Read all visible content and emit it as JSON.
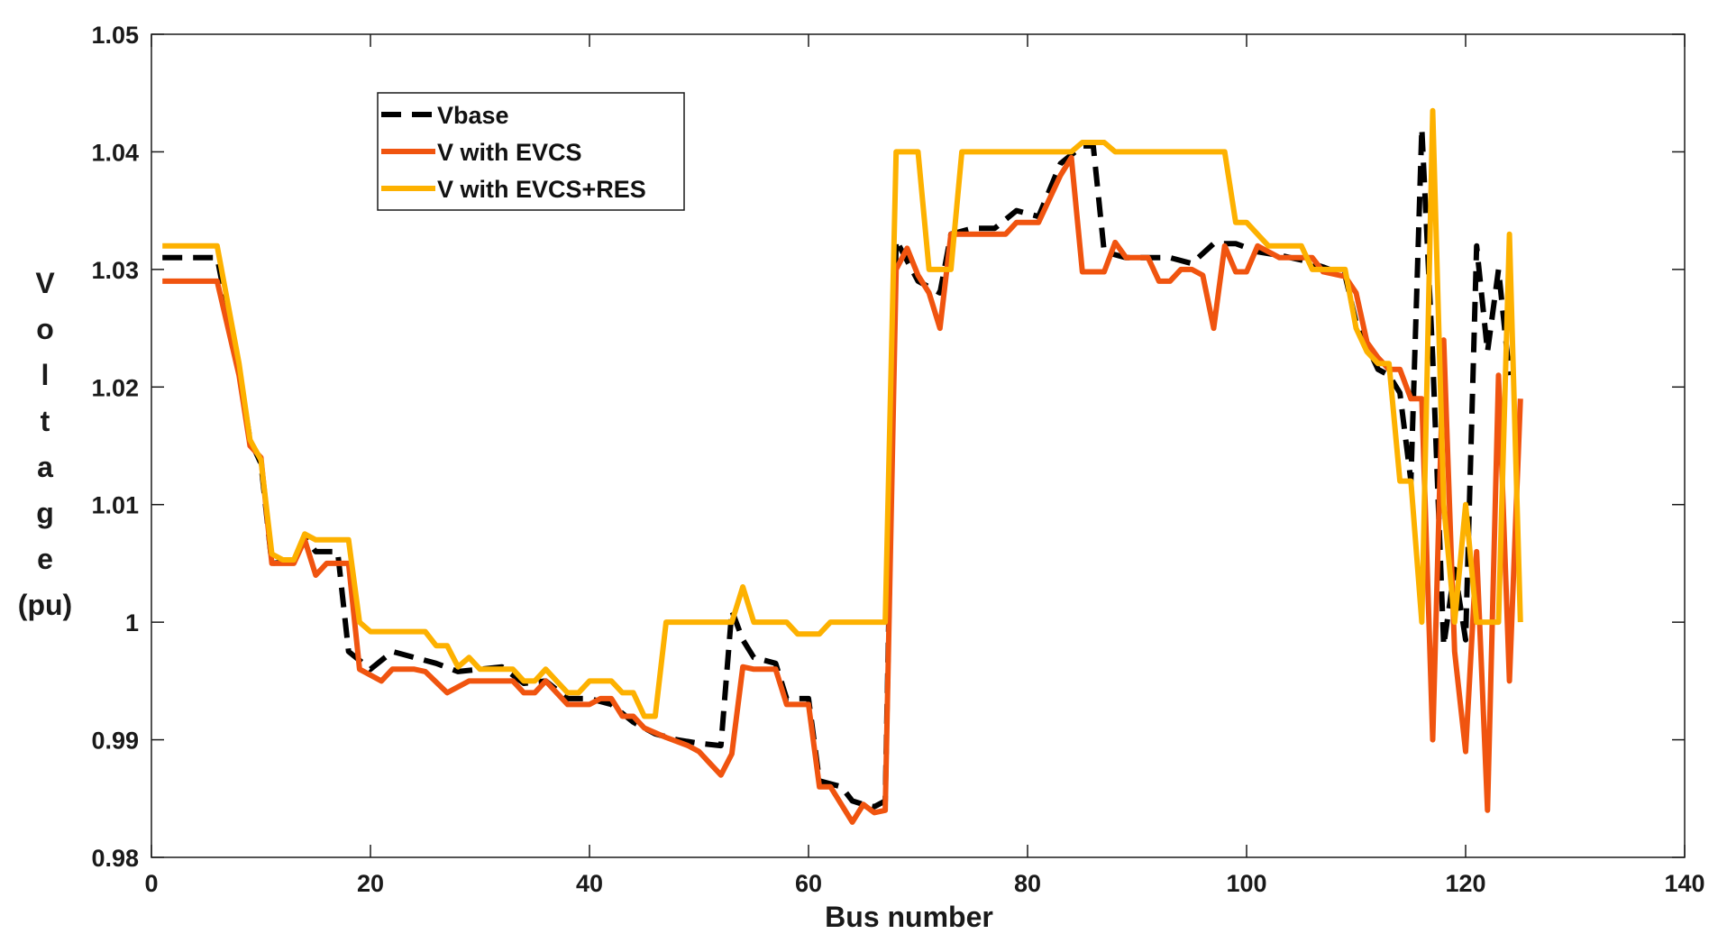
{
  "chart_data": {
    "type": "line",
    "title": "",
    "xlabel": "Bus number",
    "ylabel": "Voltage (pu)",
    "ylabel_chars": [
      "V",
      "o",
      "l",
      "t",
      "a",
      "g",
      "e",
      "(pu)"
    ],
    "xlim": [
      0,
      140
    ],
    "ylim": [
      0.98,
      1.05
    ],
    "xticks": [
      0,
      20,
      40,
      60,
      80,
      100,
      120,
      140
    ],
    "yticks": [
      0.98,
      0.99,
      1,
      1.01,
      1.02,
      1.03,
      1.04,
      1.05
    ],
    "xtick_labels": [
      "0",
      "20",
      "40",
      "60",
      "80",
      "100",
      "120",
      "140"
    ],
    "ytick_labels": [
      "0.98",
      "0.99",
      "1",
      "1.01",
      "1.02",
      "1.03",
      "1.04",
      "1.05"
    ],
    "grid": false,
    "legend_position": "top-left",
    "series": [
      {
        "name": "Vbase",
        "color": "#000000",
        "dash": true,
        "points": [
          [
            1,
            1.031
          ],
          [
            6,
            1.031
          ],
          [
            8,
            1.0215
          ],
          [
            9,
            1.0155
          ],
          [
            10,
            1.0135
          ],
          [
            11,
            1.005
          ],
          [
            13,
            1.0052
          ],
          [
            14,
            1.0072
          ],
          [
            15,
            1.006
          ],
          [
            17,
            1.006
          ],
          [
            18,
            0.9975
          ],
          [
            20,
            0.996
          ],
          [
            22,
            0.9975
          ],
          [
            24,
            0.997
          ],
          [
            26,
            0.9965
          ],
          [
            28,
            0.9958
          ],
          [
            30,
            0.996
          ],
          [
            32,
            0.9962
          ],
          [
            34,
            0.9948
          ],
          [
            36,
            0.995
          ],
          [
            38,
            0.9935
          ],
          [
            40,
            0.9935
          ],
          [
            42,
            0.993
          ],
          [
            44,
            0.9915
          ],
          [
            46,
            0.9905
          ],
          [
            48,
            0.99
          ],
          [
            50,
            0.9897
          ],
          [
            52,
            0.9895
          ],
          [
            53,
            1.001
          ],
          [
            54,
            0.9985
          ],
          [
            55,
            0.997
          ],
          [
            57,
            0.9965
          ],
          [
            58,
            0.9935
          ],
          [
            60,
            0.9935
          ],
          [
            61,
            0.9865
          ],
          [
            63,
            0.986
          ],
          [
            64,
            0.9848
          ],
          [
            65,
            0.9845
          ],
          [
            66,
            0.9843
          ],
          [
            67,
            0.9848
          ],
          [
            68,
            1.0325
          ],
          [
            70,
            1.029
          ],
          [
            72,
            1.028
          ],
          [
            73,
            1.033
          ],
          [
            75,
            1.0335
          ],
          [
            77,
            1.0335
          ],
          [
            79,
            1.035
          ],
          [
            81,
            1.0345
          ],
          [
            83,
            1.039
          ],
          [
            85,
            1.0405
          ],
          [
            86,
            1.0405
          ],
          [
            87,
            1.0315
          ],
          [
            89,
            1.031
          ],
          [
            91,
            1.031
          ],
          [
            93,
            1.031
          ],
          [
            95,
            1.0305
          ],
          [
            97,
            1.0322
          ],
          [
            99,
            1.0322
          ],
          [
            101,
            1.0315
          ],
          [
            103,
            1.0312
          ],
          [
            105,
            1.0308
          ],
          [
            107,
            1.0302
          ],
          [
            109,
            1.0295
          ],
          [
            110,
            1.0255
          ],
          [
            112,
            1.0215
          ],
          [
            113,
            1.021
          ],
          [
            114,
            1.0195
          ],
          [
            115,
            1.012
          ],
          [
            116,
            1.042
          ],
          [
            117,
            1.0225
          ],
          [
            118,
            0.998
          ],
          [
            119,
            1.0045
          ],
          [
            120,
            0.9985
          ],
          [
            121,
            1.032
          ],
          [
            122,
            1.023
          ],
          [
            123,
            1.03
          ],
          [
            124,
            1.021
          ]
        ]
      },
      {
        "name": "V with EVCS",
        "color": "#f0540f",
        "dash": false,
        "points": [
          [
            1,
            1.029
          ],
          [
            6,
            1.029
          ],
          [
            8,
            1.021
          ],
          [
            9,
            1.015
          ],
          [
            10,
            1.014
          ],
          [
            11,
            1.005
          ],
          [
            12,
            1.005
          ],
          [
            13,
            1.005
          ],
          [
            14,
            1.007
          ],
          [
            15,
            1.004
          ],
          [
            16,
            1.005
          ],
          [
            18,
            1.005
          ],
          [
            19,
            0.996
          ],
          [
            21,
            0.995
          ],
          [
            22,
            0.996
          ],
          [
            24,
            0.996
          ],
          [
            25,
            0.9958
          ],
          [
            27,
            0.994
          ],
          [
            28,
            0.9945
          ],
          [
            29,
            0.995
          ],
          [
            31,
            0.995
          ],
          [
            33,
            0.995
          ],
          [
            34,
            0.994
          ],
          [
            35,
            0.994
          ],
          [
            36,
            0.995
          ],
          [
            38,
            0.993
          ],
          [
            40,
            0.993
          ],
          [
            41,
            0.9935
          ],
          [
            42,
            0.9935
          ],
          [
            43,
            0.992
          ],
          [
            44,
            0.992
          ],
          [
            45,
            0.991
          ],
          [
            47,
            0.9902
          ],
          [
            49,
            0.9895
          ],
          [
            50,
            0.989
          ],
          [
            51,
            0.988
          ],
          [
            52,
            0.987
          ],
          [
            53,
            0.9888
          ],
          [
            54,
            0.9962
          ],
          [
            55,
            0.996
          ],
          [
            57,
            0.996
          ],
          [
            58,
            0.993
          ],
          [
            60,
            0.993
          ],
          [
            61,
            0.986
          ],
          [
            62,
            0.986
          ],
          [
            64,
            0.983
          ],
          [
            65,
            0.9845
          ],
          [
            66,
            0.9838
          ],
          [
            67,
            0.984
          ],
          [
            68,
            1.03
          ],
          [
            69,
            1.0318
          ],
          [
            70,
            1.0295
          ],
          [
            71,
            1.028
          ],
          [
            72,
            1.025
          ],
          [
            73,
            1.033
          ],
          [
            75,
            1.033
          ],
          [
            77,
            1.033
          ],
          [
            78,
            1.033
          ],
          [
            79,
            1.034
          ],
          [
            81,
            1.034
          ],
          [
            83,
            1.038
          ],
          [
            84,
            1.0395
          ],
          [
            85,
            1.0298
          ],
          [
            87,
            1.0298
          ],
          [
            88,
            1.0323
          ],
          [
            89,
            1.031
          ],
          [
            91,
            1.031
          ],
          [
            92,
            1.029
          ],
          [
            93,
            1.029
          ],
          [
            94,
            1.03
          ],
          [
            95,
            1.03
          ],
          [
            96,
            1.0295
          ],
          [
            97,
            1.025
          ],
          [
            98,
            1.032
          ],
          [
            99,
            1.0298
          ],
          [
            100,
            1.0298
          ],
          [
            101,
            1.032
          ],
          [
            103,
            1.031
          ],
          [
            105,
            1.031
          ],
          [
            106,
            1.031
          ],
          [
            107,
            1.0298
          ],
          [
            109,
            1.0294
          ],
          [
            110,
            1.028
          ],
          [
            111,
            1.0238
          ],
          [
            112,
            1.0225
          ],
          [
            113,
            1.0215
          ],
          [
            114,
            1.0215
          ],
          [
            115,
            1.019
          ],
          [
            116,
            1.019
          ],
          [
            117,
            0.99
          ],
          [
            118,
            1.024
          ],
          [
            119,
            0.9975
          ],
          [
            120,
            0.989
          ],
          [
            121,
            1.006
          ],
          [
            122,
            0.984
          ],
          [
            123,
            1.021
          ],
          [
            124,
            0.995
          ],
          [
            125,
            1.019
          ]
        ]
      },
      {
        "name": "V with EVCS+RES",
        "color": "#fdb100",
        "dash": false,
        "points": [
          [
            1,
            1.032
          ],
          [
            6,
            1.032
          ],
          [
            8,
            1.022
          ],
          [
            9,
            1.0155
          ],
          [
            10,
            1.0138
          ],
          [
            11,
            1.0058
          ],
          [
            12,
            1.0053
          ],
          [
            13,
            1.0053
          ],
          [
            14,
            1.0075
          ],
          [
            15,
            1.007
          ],
          [
            17,
            1.007
          ],
          [
            18,
            1.007
          ],
          [
            19,
            1.0
          ],
          [
            20,
            0.9992
          ],
          [
            22,
            0.9992
          ],
          [
            24,
            0.9992
          ],
          [
            25,
            0.9992
          ],
          [
            26,
            0.998
          ],
          [
            27,
            0.998
          ],
          [
            28,
            0.9962
          ],
          [
            29,
            0.997
          ],
          [
            30,
            0.996
          ],
          [
            32,
            0.996
          ],
          [
            33,
            0.996
          ],
          [
            34,
            0.995
          ],
          [
            35,
            0.995
          ],
          [
            36,
            0.996
          ],
          [
            37,
            0.995
          ],
          [
            38,
            0.994
          ],
          [
            39,
            0.994
          ],
          [
            40,
            0.995
          ],
          [
            42,
            0.995
          ],
          [
            43,
            0.994
          ],
          [
            44,
            0.994
          ],
          [
            45,
            0.992
          ],
          [
            46,
            0.992
          ],
          [
            47,
            1.0
          ],
          [
            50,
            1.0
          ],
          [
            52,
            1.0
          ],
          [
            53,
            1.0
          ],
          [
            54,
            1.003
          ],
          [
            55,
            1.0
          ],
          [
            57,
            1.0
          ],
          [
            58,
            1.0
          ],
          [
            59,
            0.999
          ],
          [
            61,
            0.999
          ],
          [
            62,
            1.0
          ],
          [
            64,
            1.0
          ],
          [
            67,
            1.0
          ],
          [
            68,
            1.04
          ],
          [
            69,
            1.04
          ],
          [
            70,
            1.04
          ],
          [
            71,
            1.03
          ],
          [
            73,
            1.03
          ],
          [
            74,
            1.04
          ],
          [
            82,
            1.04
          ],
          [
            84,
            1.04
          ],
          [
            85,
            1.0408
          ],
          [
            87,
            1.0408
          ],
          [
            88,
            1.04
          ],
          [
            90,
            1.04
          ],
          [
            94,
            1.04
          ],
          [
            98,
            1.04
          ],
          [
            99,
            1.034
          ],
          [
            100,
            1.034
          ],
          [
            102,
            1.032
          ],
          [
            105,
            1.032
          ],
          [
            106,
            1.03
          ],
          [
            109,
            1.03
          ],
          [
            110,
            1.025
          ],
          [
            111,
            1.023
          ],
          [
            112,
            1.022
          ],
          [
            113,
            1.022
          ],
          [
            114,
            1.012
          ],
          [
            115,
            1.012
          ],
          [
            116,
            1.0
          ],
          [
            117,
            1.0435
          ],
          [
            118,
            1.01
          ],
          [
            119,
            1.0
          ],
          [
            120,
            1.01
          ],
          [
            121,
            1.0
          ],
          [
            122,
            1.0
          ],
          [
            123,
            1.0
          ],
          [
            124,
            1.033
          ],
          [
            125,
            1.0
          ]
        ]
      }
    ]
  }
}
